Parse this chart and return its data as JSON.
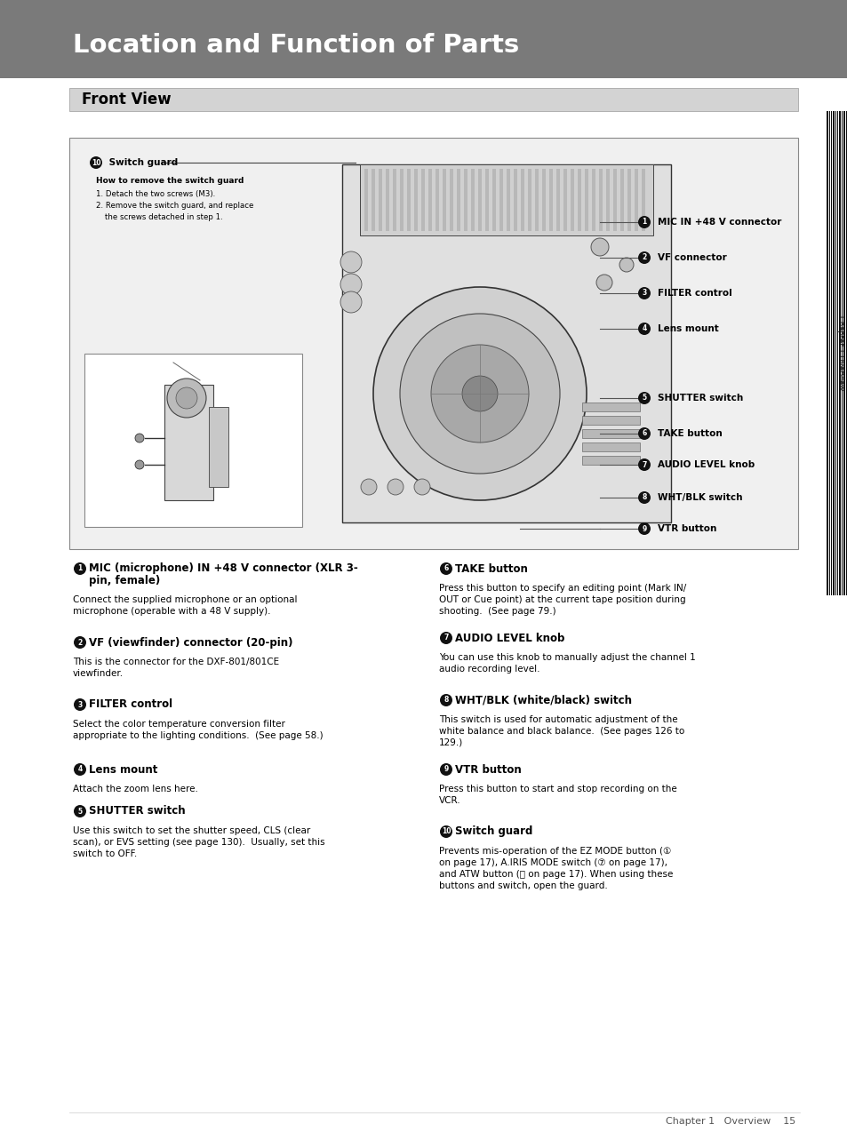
{
  "page_bg": "#ffffff",
  "header_bg": "#7a7a7a",
  "header_text": "Location and Function of Parts",
  "header_text_color": "#ffffff",
  "header_font_size": 21,
  "section_bg": "#d3d3d3",
  "section_text": "Front View",
  "section_font_size": 12,
  "body_text_color": "#000000",
  "label_font_size": 7.5,
  "body_font_size": 7.5,
  "title_font_size": 8.5,
  "items_left": [
    {
      "num": "1",
      "title_bold": "MIC (microphone) IN +48 V connector (XLR 3-",
      "title_bold2": "pin, female)",
      "body": "Connect the supplied microphone or an optional\nmicrophone (operable with a 48 V supply)."
    },
    {
      "num": "2",
      "title_bold": "VF (viewfinder) connector (20-pin)",
      "title_bold2": "",
      "body": "This is the connector for the DXF-801/801CE\nviewfinder."
    },
    {
      "num": "3",
      "title_bold": "FILTER control",
      "title_bold2": "",
      "body": "Select the color temperature conversion filter\nappropriate to the lighting conditions.  (See page 58.)"
    },
    {
      "num": "4",
      "title_bold": "Lens mount",
      "title_bold2": "",
      "body": "Attach the zoom lens here."
    },
    {
      "num": "5",
      "title_bold": "SHUTTER switch",
      "title_bold2": "",
      "body": "Use this switch to set the shutter speed, CLS (clear\nscan), or EVS setting (see page 130).  Usually, set this\nswitch to OFF."
    }
  ],
  "items_right": [
    {
      "num": "6",
      "title_bold": "TAKE button",
      "title_bold2": "",
      "body": "Press this button to specify an editing point (Mark IN/\nOUT or Cue point) at the current tape position during\nshooting.  (See page 79.)"
    },
    {
      "num": "7",
      "title_bold": "AUDIO LEVEL knob",
      "title_bold2": "",
      "body": "You can use this knob to manually adjust the channel 1\naudio recording level."
    },
    {
      "num": "8",
      "title_bold": "WHT/BLK (white/black) switch",
      "title_bold2": "",
      "body": "This switch is used for automatic adjustment of the\nwhite balance and black balance.  (See pages 126 to\n129.)"
    },
    {
      "num": "9",
      "title_bold": "VTR button",
      "title_bold2": "",
      "body": "Press this button to start and stop recording on the\nVCR."
    },
    {
      "num": "10",
      "title_bold": "Switch guard",
      "title_bold2": "",
      "body": "Prevents mis-operation of the EZ MODE button (①\non page 17), A.IRIS MODE switch (⑦ on page 17),\nand ATW button (⑭ on page 17). When using these\nbuttons and switch, open the guard."
    }
  ],
  "footer_text": "Chapter 1   Overview    15",
  "footer_font_size": 8,
  "diagram_labels": [
    {
      "num": "1",
      "text": "MIC IN +48 V connector"
    },
    {
      "num": "2",
      "text": "VF connector"
    },
    {
      "num": "3",
      "text": "FILTER control"
    },
    {
      "num": "4",
      "text": "Lens mount"
    },
    {
      "num": "5",
      "text": "SHUTTER switch"
    },
    {
      "num": "6",
      "text": "TAKE button"
    },
    {
      "num": "7",
      "text": "AUDIO LEVEL knob"
    },
    {
      "num": "8",
      "text": "WHT/BLK switch"
    },
    {
      "num": "9",
      "text": "VTR button"
    }
  ]
}
